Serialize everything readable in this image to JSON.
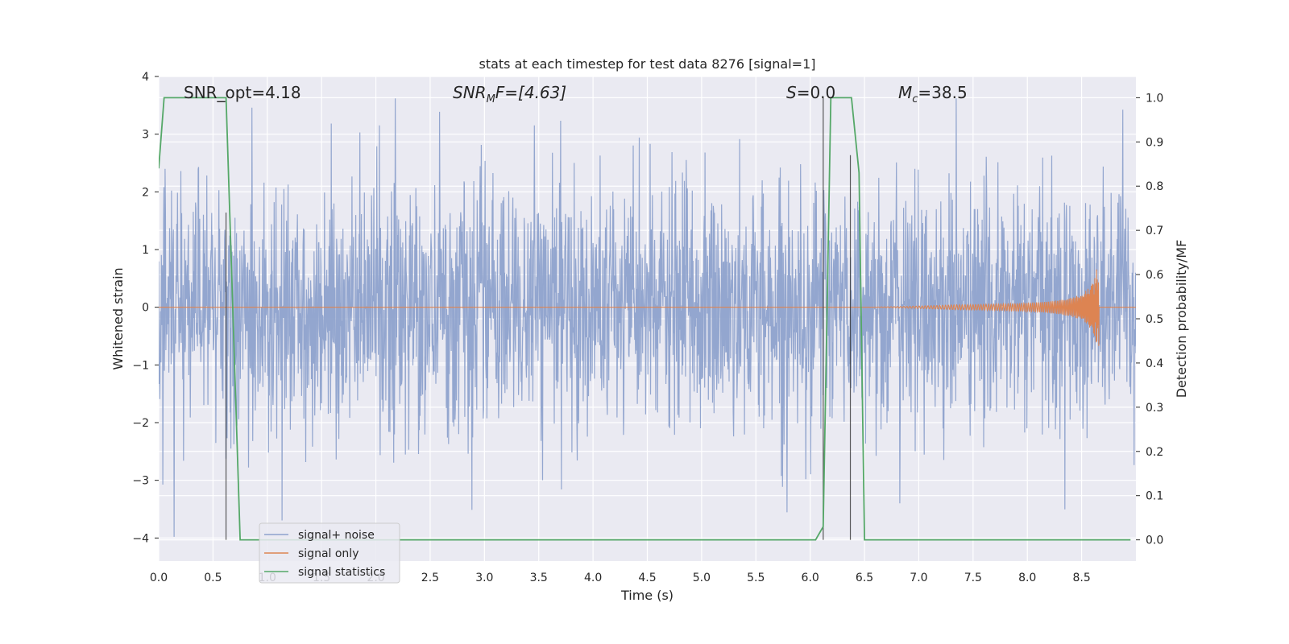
{
  "chart_data": {
    "type": "line",
    "title": "stats at each timestep for test data 8276 [signal=1]",
    "xlabel": "Time (s)",
    "ylabel": "Whitened strain",
    "ylabel_right": "Detection probability/MF",
    "xlim": [
      0.0,
      9.0
    ],
    "ylim": [
      -4.4,
      4.0
    ],
    "ylim_right": [
      -0.048,
      1.048
    ],
    "x_ticks": [
      "0.0",
      "0.5",
      "1.0",
      "1.5",
      "2.0",
      "2.5",
      "3.0",
      "3.5",
      "4.0",
      "4.5",
      "5.0",
      "5.5",
      "6.0",
      "6.5",
      "7.0",
      "7.5",
      "8.0",
      "8.5"
    ],
    "y_ticks": [
      "4",
      "3",
      "2",
      "1",
      "0",
      "−1",
      "−2",
      "−3",
      "−4"
    ],
    "y_ticks_right": [
      "1.0",
      "0.9",
      "0.8",
      "0.7",
      "0.6",
      "0.5",
      "0.4",
      "0.3",
      "0.2",
      "0.1",
      "0.0"
    ],
    "grid": true,
    "legend_position": "lower-left",
    "annotations": {
      "snr_opt": "SNR_opt=4.18",
      "snr_mf_symbol": "SNR",
      "snr_mf_sub": "M",
      "snr_mf_rest": "F=[4.63]",
      "s_symbol": "S",
      "s_value": "=0.0",
      "mc_symbol": "M",
      "mc_sub": "c",
      "mc_value": "=38.5"
    },
    "series": [
      {
        "name": "signal+ noise",
        "color": "#8ea2cc",
        "description_values": {
          "spread": 1.35,
          "peak_max": 3.62,
          "peak_min": -3.98,
          "x_start": 0.0,
          "x_end": 9.0
        }
      },
      {
        "name": "signal only",
        "color": "#dd8452",
        "chirp": {
          "t_merger": 8.66,
          "t_onset": 6.5,
          "peak_amplitude": 1.0
        }
      },
      {
        "name": "signal statistics",
        "color": "#55a868",
        "x": [
          0.0,
          0.05,
          0.1,
          0.6,
          0.62,
          0.75,
          6.05,
          6.12,
          6.19,
          6.38,
          6.45,
          6.5,
          8.95
        ],
        "y": [
          0.84,
          1.0,
          1.0,
          1.0,
          1.0,
          0.0,
          0.0,
          0.03,
          1.0,
          1.0,
          0.83,
          0.0,
          0.0
        ]
      }
    ],
    "vertical_markers_right_units": [
      {
        "x": 0.62,
        "y_from": 0.0,
        "y_to": 0.74
      },
      {
        "x": 6.12,
        "y_from": 0.0,
        "y_to": 1.0
      },
      {
        "x": 6.37,
        "y_from": 0.0,
        "y_to": 0.87
      }
    ]
  }
}
